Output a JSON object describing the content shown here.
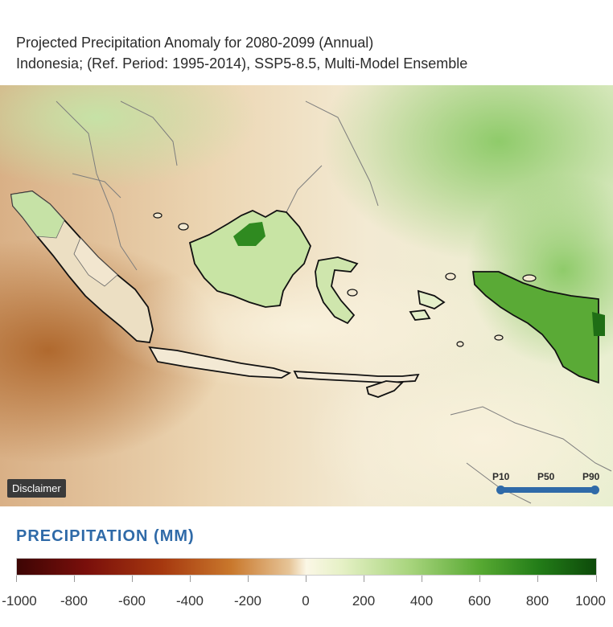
{
  "title": {
    "line1": "Projected Precipitation Anomaly for 2080-2099 (Annual)",
    "line2": "Indonesia; (Ref. Period: 1995-2014), SSP5-8.5, Multi-Model Ensemble"
  },
  "map": {
    "disclaimer_label": "Disclaimer",
    "percentiles": [
      "P10",
      "P50",
      "P90"
    ],
    "selected_percentile": "P50"
  },
  "legend": {
    "title": "PRECIPITATION (MM)",
    "tick_labels": [
      "-1000",
      "-800",
      "-600",
      "-400",
      "-200",
      "0",
      "200",
      "400",
      "600",
      "800",
      "1000"
    ],
    "colors": {
      "min": "#3d0504",
      "dry": "#c9782c",
      "neutral": "#fbf7e6",
      "wet": "#57a932",
      "max": "#0d4a0a"
    }
  }
}
